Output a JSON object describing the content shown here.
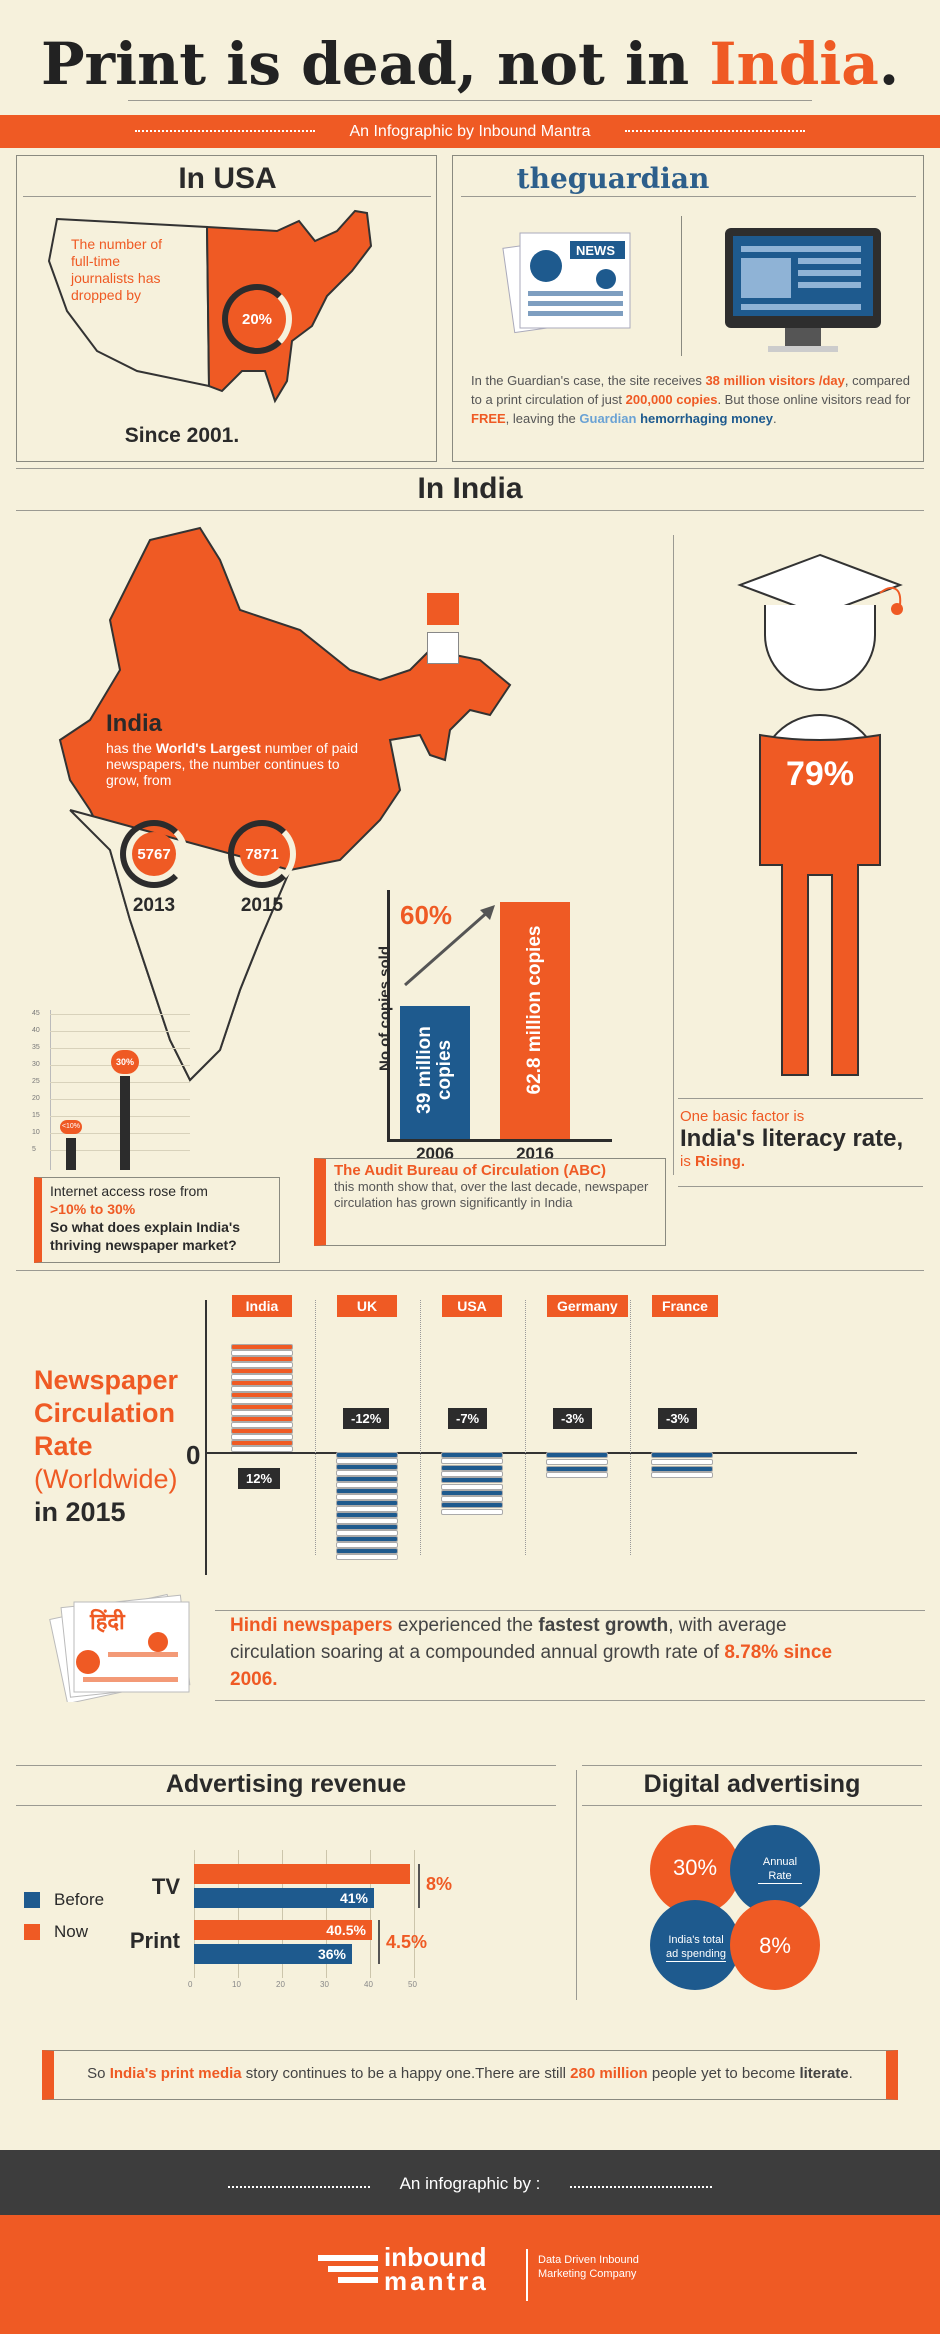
{
  "title": {
    "part1": "Print is dead, not in ",
    "part2": "India",
    "part3": "."
  },
  "subtitle": "An Infographic by Inbound Mantra",
  "usa": {
    "heading": "In USA",
    "map_text": "The number of full-time journalists has dropped by",
    "percent": "20%",
    "since": "Since 2001."
  },
  "guardian": {
    "logo": "theguardian",
    "news_label": "NEWS",
    "t1": "In the Guardian's case, the site receives ",
    "t2": "38 million visitors /day",
    "t3": ", compared to a print circulation of just ",
    "t4": "200,000 copies",
    "t5": ". But those online visitors read for ",
    "t6": "FREE",
    "t7": ", leaving the ",
    "t8": "Guardian",
    "t9": " hemorrhaging money",
    "t10": "."
  },
  "india": {
    "heading": "In India",
    "map_title": "India",
    "map_t1": "has the ",
    "map_t2": "World's Largest",
    "map_t3": " number of paid newspapers, the number continues to grow, from",
    "years": [
      {
        "value": "5767",
        "year": "2013"
      },
      {
        "value": "7871",
        "year": "2015"
      }
    ],
    "internet_t1": "Internet access rose from ",
    "internet_t2": ">10% to 30%",
    "internet_t3": "So what does explain India's thriving newspaper market?",
    "mini_bar_labels": [
      "<10%",
      "30%"
    ],
    "mini_axis": [
      "45",
      "40",
      "35",
      "30",
      "25",
      "20",
      "15",
      "10",
      "5"
    ],
    "copies": {
      "ylabel": "No of copies sold",
      "growth": "60%",
      "b2006": "39 million copies",
      "b2016": "62.8 million copies",
      "y1": "2006",
      "y2": "2016"
    },
    "abc_title": "The Audit Bureau of Circulation (ABC)",
    "abc_text": "this month show that, over the last decade, newspaper circulation has grown significantly in India",
    "literacy_pct": "79%",
    "literacy_t1": "One basic factor is",
    "literacy_t2": "India's literacy rate,",
    "literacy_t3": "is ",
    "literacy_t4": "Rising."
  },
  "circulation": {
    "title1": "Newspaper",
    "title2": "Circulation",
    "title3": "Rate",
    "title4": "(Worldwide)",
    "title5": "in 2015",
    "zero": "0",
    "countries": [
      {
        "name": "India",
        "rate": "12%"
      },
      {
        "name": "UK",
        "rate": "-12%"
      },
      {
        "name": "USA",
        "rate": "-7%"
      },
      {
        "name": "Germany",
        "rate": "-3%"
      },
      {
        "name": "France",
        "rate": "-3%"
      }
    ]
  },
  "hindi": {
    "label": "हिंदी",
    "t1": "Hindi newspapers",
    "t2": " experienced the ",
    "t3": "fastest growth",
    "t4": ", with average circulation soaring at a compounded annual growth rate of ",
    "t5": "8.78% since 2006."
  },
  "ad_revenue": {
    "heading": "Advertising revenue",
    "legend_before": "Before",
    "legend_now": "Now",
    "rows": [
      {
        "label": "TV",
        "before": "41%",
        "now": "",
        "growth": "8%"
      },
      {
        "label": "Print",
        "before": "36%",
        "now": "40.5%",
        "growth": "4.5%"
      }
    ],
    "axis": [
      "0",
      "10",
      "20",
      "30",
      "40",
      "50"
    ]
  },
  "digital": {
    "heading": "Digital advertising",
    "c1": "30%",
    "c2": "Annual Rate",
    "c3": "India's total ad spending",
    "c4": "8%"
  },
  "summary": {
    "t1": "So ",
    "t2": "India's print media",
    "t3": " story continues to be a happy one.There are still ",
    "t4": "280 million",
    "t5": " people yet to become ",
    "t6": "literate",
    "t7": "."
  },
  "footer": {
    "by": "An infographic by :",
    "logo1": "inbound",
    "logo2": "mantra",
    "tagline": "Data Driven Inbound Marketing Company"
  },
  "colors": {
    "accent": "#ef5a24",
    "blue": "#1e5a8e",
    "bg": "#f6f1dc",
    "dark": "#3d3d3d"
  }
}
